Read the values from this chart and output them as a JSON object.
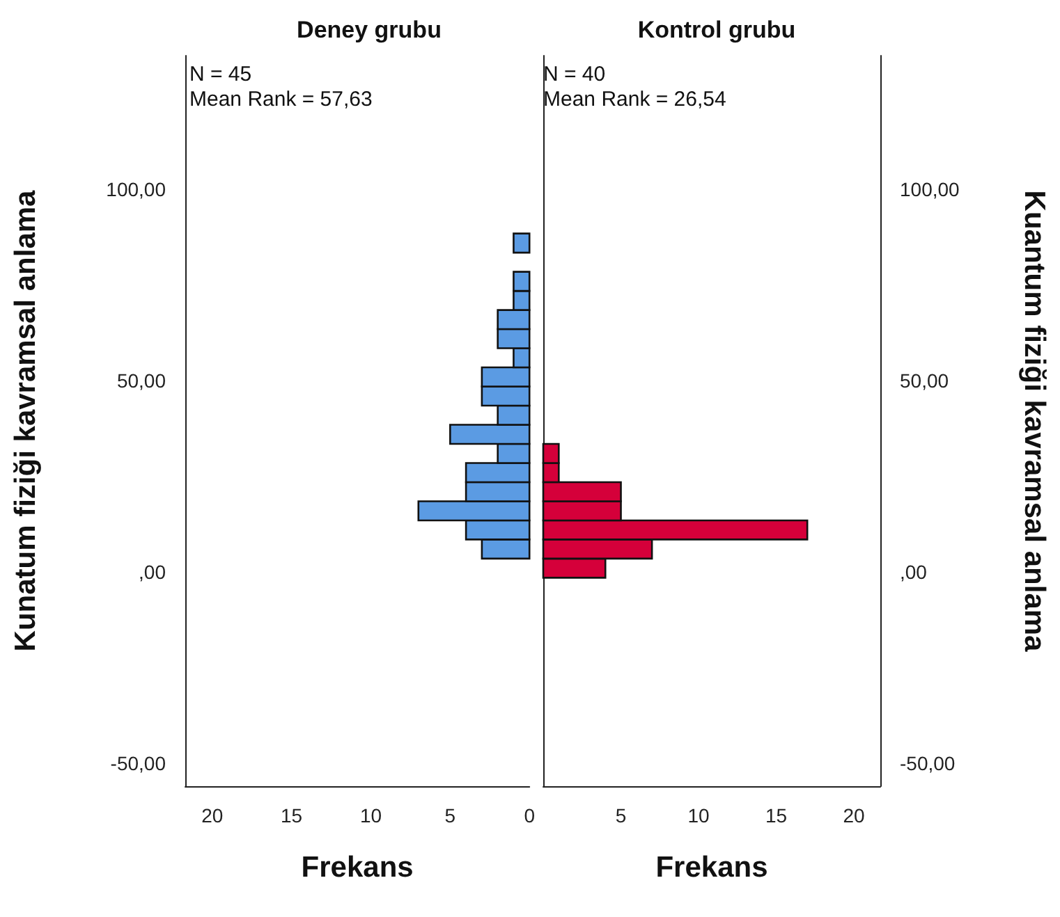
{
  "chart_data": [
    {
      "type": "histogram",
      "orientation": "horizontal",
      "title": "Deney grubu",
      "xlabel": "Frekans",
      "ylabel": "Kunatum fiziği kavramsal anlama",
      "annotations": [
        "N = 45",
        "Mean Rank = 57,63"
      ],
      "color": "#5b9be3",
      "bins": [
        -1.5,
        3.5,
        8.5,
        13.5,
        18.5,
        23.5,
        28.5,
        33.5,
        38.5,
        43.5,
        48.5,
        53.5,
        58.5,
        63.5,
        68.5,
        73.5,
        78.5,
        83.5,
        88.5
      ],
      "values": [
        0,
        3,
        4,
        7,
        4,
        4,
        2,
        5,
        2,
        3,
        3,
        1,
        2,
        2,
        1,
        1,
        0,
        1
      ],
      "xlim": [
        21.7,
        0
      ],
      "xticks": [
        20,
        15,
        10,
        5,
        0
      ],
      "ylim": [
        -56,
        135
      ],
      "yticks": [
        {
          "value": -50,
          "label": "-50,00"
        },
        {
          "value": 0,
          "label": ",00"
        },
        {
          "value": 50,
          "label": "50,00"
        },
        {
          "value": 100,
          "label": "100,00"
        }
      ],
      "grid": false
    },
    {
      "type": "histogram",
      "orientation": "horizontal",
      "title": "Kontrol grubu",
      "xlabel": "Frekans",
      "ylabel": "Kuantum fiziği kavramsal anlama",
      "annotations": [
        "N = 40",
        "Mean Rank = 26,54"
      ],
      "color": "#d5003a",
      "bins": [
        -1.5,
        3.5,
        8.5,
        13.5,
        18.5,
        23.5,
        28.5,
        33.5,
        38.5,
        43.5,
        48.5,
        53.5,
        58.5,
        63.5,
        68.5,
        73.5,
        78.5,
        83.5,
        88.5
      ],
      "values": [
        4,
        7,
        17,
        5,
        5,
        1,
        1,
        0,
        0,
        0,
        0,
        0,
        0,
        0,
        0,
        0,
        0,
        0
      ],
      "xlim": [
        0,
        21.7
      ],
      "xticks": [
        {
          "value": 0,
          "label": null
        },
        5,
        10,
        15,
        20
      ],
      "ylim": [
        -56,
        135
      ],
      "yticks": [
        {
          "value": -50,
          "label": "-50,00"
        },
        {
          "value": 0,
          "label": ",00"
        },
        {
          "value": 50,
          "label": "50,00"
        },
        {
          "value": 100,
          "label": "100,00"
        }
      ],
      "grid": false
    }
  ]
}
